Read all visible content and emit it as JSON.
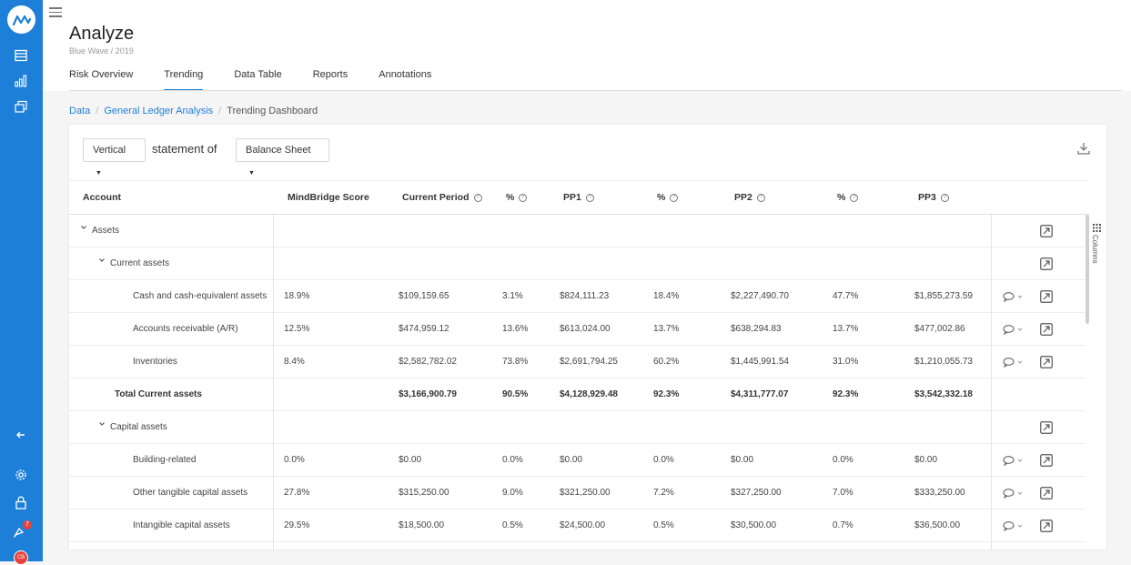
{
  "sidebar": {
    "brand": "MindBridge",
    "icons": [
      "logo-icon",
      "table-icon",
      "bar-chart-icon",
      "report-icon",
      "collapse-arrow-icon",
      "settings-icon",
      "lock-icon",
      "notification-icon",
      "user-avatar"
    ],
    "notification_count": "7",
    "user_initials": "CB"
  },
  "header": {
    "title": "Analyze",
    "subtitle": "Blue Wave / 2019"
  },
  "tabs": [
    {
      "label": "Risk Overview"
    },
    {
      "label": "Trending"
    },
    {
      "label": "Data Table"
    },
    {
      "label": "Reports"
    },
    {
      "label": "Annotations"
    }
  ],
  "active_tab": "Trending",
  "breadcrumb": {
    "items": [
      "Data",
      "General Ledger Analysis",
      "Trending Dashboard"
    ],
    "separator": "/"
  },
  "controls": {
    "orientation": "Vertical",
    "statement_label": "statement of",
    "statement": "Balance Sheet"
  },
  "table": {
    "headers": [
      "Account",
      "MindBridge Score",
      "Current Period",
      "%",
      "PP1",
      "%",
      "PP2",
      "%",
      "PP3"
    ],
    "rows": [
      {
        "account": "Assets",
        "level": 0,
        "expandable": true,
        "cells": [
          "",
          "",
          "",
          "",
          "",
          "",
          "",
          ""
        ],
        "total": false,
        "comment": false
      },
      {
        "account": "Current assets",
        "level": 1,
        "expandable": true,
        "cells": [
          "",
          "",
          "",
          "",
          "",
          "",
          "",
          ""
        ],
        "total": false,
        "comment": false
      },
      {
        "account": "Cash and cash-equivalent assets",
        "level": 2,
        "expandable": false,
        "cells": [
          "18.9%",
          "$109,159.65",
          "3.1%",
          "$824,111.23",
          "18.4%",
          "$2,227,490.70",
          "47.7%",
          "$1,855,273.59"
        ],
        "total": false,
        "comment": true
      },
      {
        "account": "Accounts receivable (A/R)",
        "level": 2,
        "expandable": false,
        "cells": [
          "12.5%",
          "$474,959.12",
          "13.6%",
          "$613,024.00",
          "13.7%",
          "$638,294.83",
          "13.7%",
          "$477,002.86"
        ],
        "total": false,
        "comment": true
      },
      {
        "account": "Inventories",
        "level": 2,
        "expandable": false,
        "cells": [
          "8.4%",
          "$2,582,782.02",
          "73.8%",
          "$2,691,794.25",
          "60.2%",
          "$1,445,991.54",
          "31.0%",
          "$1,210,055.73"
        ],
        "total": false,
        "comment": true
      },
      {
        "account": "Total Current assets",
        "level": 1,
        "expandable": false,
        "cells": [
          "",
          "$3,166,900.79",
          "90.5%",
          "$4,128,929.48",
          "92.3%",
          "$4,311,777.07",
          "92.3%",
          "$3,542,332.18"
        ],
        "total": true,
        "comment": false
      },
      {
        "account": "Capital assets",
        "level": 1,
        "expandable": true,
        "cells": [
          "",
          "",
          "",
          "",
          "",
          "",
          "",
          ""
        ],
        "total": false,
        "comment": false
      },
      {
        "account": "Building-related",
        "level": 2,
        "expandable": false,
        "cells": [
          "0.0%",
          "$0.00",
          "0.0%",
          "$0.00",
          "0.0%",
          "$0.00",
          "0.0%",
          "$0.00"
        ],
        "total": false,
        "comment": true
      },
      {
        "account": "Other tangible capital assets",
        "level": 2,
        "expandable": false,
        "cells": [
          "27.8%",
          "$315,250.00",
          "9.0%",
          "$321,250.00",
          "7.2%",
          "$327,250.00",
          "7.0%",
          "$333,250.00"
        ],
        "total": false,
        "comment": true
      },
      {
        "account": "Intangible capital assets",
        "level": 2,
        "expandable": false,
        "cells": [
          "29.5%",
          "$18,500.00",
          "0.5%",
          "$24,500.00",
          "0.5%",
          "$30,500.00",
          "0.7%",
          "$36,500.00"
        ],
        "total": false,
        "comment": true
      }
    ]
  },
  "columns_toggle_label": "Columns",
  "colors": {
    "brand": "#1e7fd8",
    "notification": "#e8413c"
  }
}
